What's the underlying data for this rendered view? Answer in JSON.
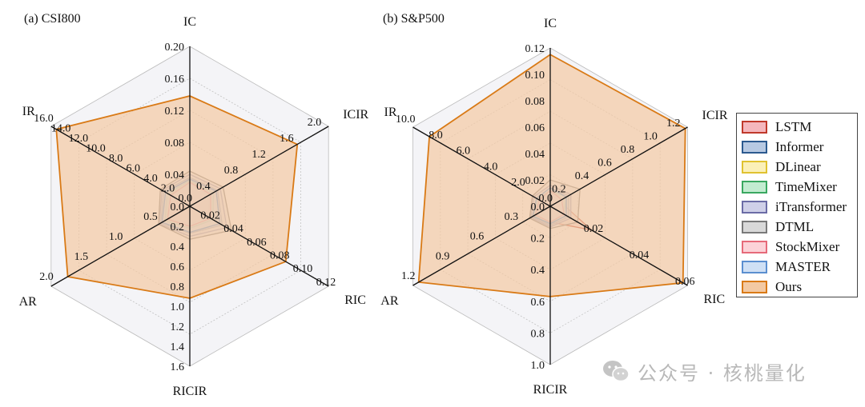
{
  "chart_data": [
    {
      "type": "radar",
      "title": "(a) CSI800",
      "axes": [
        {
          "name": "IC",
          "ticks": [
            "0.04",
            "0.08",
            "0.12",
            "0.16",
            "0.20"
          ],
          "max": 0.2
        },
        {
          "name": "ICIR",
          "ticks": [
            "0.4",
            "0.8",
            "1.2",
            "1.6",
            "2.0"
          ],
          "max": 2.0
        },
        {
          "name": "RIC",
          "ticks": [
            "0.02",
            "0.04",
            "0.06",
            "0.08",
            "0.10",
            "0.12"
          ],
          "max": 0.12
        },
        {
          "name": "RICIR",
          "ticks": [
            "0.0",
            "0.2",
            "0.4",
            "0.6",
            "0.8",
            "1.0",
            "1.2",
            "1.4",
            "1.6"
          ],
          "max": 1.6
        },
        {
          "name": "AR",
          "ticks": [
            "0.5",
            "1.0",
            "1.5",
            "2.0"
          ],
          "max": 2.0
        },
        {
          "name": "IR",
          "ticks": [
            "0.0",
            "2.0",
            "4.0",
            "6.0",
            "8.0",
            "10.0",
            "12.0",
            "14.0",
            "16.0"
          ],
          "max": 16.0
        }
      ],
      "series": [
        {
          "name": "LSTM",
          "values": [
            0.028,
            0.28,
            0.016,
            0.18,
            0.3,
            2.2
          ]
        },
        {
          "name": "Informer",
          "values": [
            0.036,
            0.4,
            0.028,
            0.27,
            0.42,
            3.0
          ]
        },
        {
          "name": "DLinear",
          "values": [
            0.03,
            0.3,
            0.018,
            0.2,
            0.34,
            2.4
          ]
        },
        {
          "name": "TimeMixer",
          "values": [
            0.032,
            0.34,
            0.02,
            0.22,
            0.36,
            2.6
          ]
        },
        {
          "name": "iTransformer",
          "values": [
            0.04,
            0.44,
            0.032,
            0.3,
            0.44,
            3.2
          ]
        },
        {
          "name": "DTML",
          "values": [
            0.044,
            0.48,
            0.036,
            0.33,
            0.45,
            3.4
          ]
        },
        {
          "name": "StockMixer",
          "values": [
            0.03,
            0.3,
            0.018,
            0.2,
            0.32,
            2.2
          ]
        },
        {
          "name": "MASTER",
          "values": [
            0.034,
            0.38,
            0.026,
            0.26,
            0.4,
            2.8
          ]
        },
        {
          "name": "Ours",
          "values": [
            0.138,
            1.55,
            0.083,
            0.92,
            1.76,
            15.4
          ]
        }
      ]
    },
    {
      "type": "radar",
      "title": "(b) S&P500",
      "axes": [
        {
          "name": "IC",
          "ticks": [
            "0.02",
            "0.04",
            "0.06",
            "0.08",
            "0.10",
            "0.12"
          ],
          "max": 0.12
        },
        {
          "name": "ICIR",
          "ticks": [
            "0.2",
            "0.4",
            "0.6",
            "0.8",
            "1.0",
            "1.2"
          ],
          "max": 1.2
        },
        {
          "name": "RIC",
          "ticks": [
            "0.02",
            "0.04",
            "0.06"
          ],
          "max": 0.06
        },
        {
          "name": "RICIR",
          "ticks": [
            "0.0",
            "0.2",
            "0.4",
            "0.6",
            "0.8",
            "1.0"
          ],
          "max": 1.0
        },
        {
          "name": "AR",
          "ticks": [
            "0.3",
            "0.6",
            "0.9",
            "1.2"
          ],
          "max": 1.2
        },
        {
          "name": "IR",
          "ticks": [
            "0.0",
            "2.0",
            "4.0",
            "6.0",
            "8.0",
            "10.0"
          ],
          "max": 10.0
        }
      ],
      "series": [
        {
          "name": "LSTM",
          "values": [
            0.01,
            0.08,
            0.018,
            0.1,
            0.14,
            0.8
          ]
        },
        {
          "name": "Informer",
          "values": [
            0.014,
            0.16,
            0.008,
            0.12,
            0.16,
            1.0
          ]
        },
        {
          "name": "DLinear",
          "values": [
            0.012,
            0.12,
            0.006,
            0.1,
            0.14,
            0.9
          ]
        },
        {
          "name": "TimeMixer",
          "values": [
            0.012,
            0.14,
            0.006,
            0.11,
            0.15,
            0.9
          ]
        },
        {
          "name": "iTransformer",
          "values": [
            0.016,
            0.18,
            0.009,
            0.13,
            0.17,
            1.2
          ]
        },
        {
          "name": "DTML",
          "values": [
            0.02,
            0.26,
            0.012,
            0.14,
            0.18,
            1.3
          ]
        },
        {
          "name": "StockMixer",
          "values": [
            0.012,
            0.1,
            0.006,
            0.1,
            0.13,
            0.8
          ]
        },
        {
          "name": "MASTER",
          "values": [
            0.014,
            0.14,
            0.007,
            0.11,
            0.15,
            1.0
          ]
        },
        {
          "name": "Ours",
          "values": [
            0.115,
            1.18,
            0.058,
            0.57,
            1.15,
            8.8
          ]
        }
      ]
    }
  ],
  "legend": {
    "placement": "right",
    "items": [
      {
        "name": "LSTM",
        "stroke": "#c0392b",
        "fill": "#f5b7bd"
      },
      {
        "name": "Informer",
        "stroke": "#2c5a8f",
        "fill": "#b7c9e2"
      },
      {
        "name": "DLinear",
        "stroke": "#e0c230",
        "fill": "#fbf0b8"
      },
      {
        "name": "TimeMixer",
        "stroke": "#3aa860",
        "fill": "#c2ecd0"
      },
      {
        "name": "iTransformer",
        "stroke": "#6b6ca6",
        "fill": "#cfd0e8"
      },
      {
        "name": "DTML",
        "stroke": "#7a7a7a",
        "fill": "#d9d9d9"
      },
      {
        "name": "StockMixer",
        "stroke": "#e66a7a",
        "fill": "#fcd2d8"
      },
      {
        "name": "MASTER",
        "stroke": "#5b8fd0",
        "fill": "#cfe0f5"
      },
      {
        "name": "Ours",
        "stroke": "#d97a16",
        "fill": "#f3c9a2"
      }
    ]
  },
  "watermark": {
    "text": "公众号 · 核桃量化",
    "icon": "wechat-icon"
  }
}
